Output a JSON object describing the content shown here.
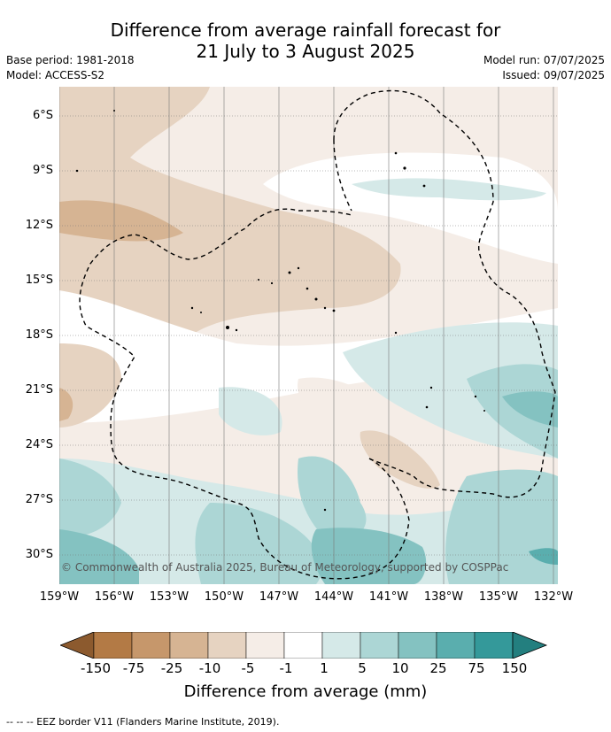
{
  "title_line1": "Difference from average rainfall forecast for",
  "title_line2": "21 July to 3 August 2025",
  "meta": {
    "base_period": "Base period: 1981-2018",
    "model": "Model: ACCESS-S2",
    "model_run": "Model run: 07/07/2025",
    "issued": "Issued: 09/07/2025"
  },
  "latitudes": [
    "6°S",
    "9°S",
    "12°S",
    "15°S",
    "18°S",
    "21°S",
    "24°S",
    "27°S",
    "30°S"
  ],
  "longitudes": [
    "159°W",
    "156°W",
    "153°W",
    "150°W",
    "147°W",
    "144°W",
    "141°W",
    "138°W",
    "135°W",
    "132°W"
  ],
  "copyright": "© Commonwealth of Australia 2025, Bureau of Meteorology, supported by COSPPac",
  "colorbar": {
    "title": "Difference from average (mm)",
    "labels": [
      "-150",
      "-75",
      "-25",
      "-10",
      "-5",
      "-1",
      "1",
      "5",
      "10",
      "25",
      "75",
      "150"
    ],
    "colors": [
      "#8c5a2e",
      "#b37a45",
      "#c6976b",
      "#d6b493",
      "#e6d3c1",
      "#f5ede7",
      "#ffffff",
      "#d5e9e8",
      "#acd6d5",
      "#84c2c1",
      "#5aaeae",
      "#34999a",
      "#237f7f"
    ]
  },
  "legend": "-- -- -- EEZ border V11 (Flanders Marine Institute, 2019)."
}
